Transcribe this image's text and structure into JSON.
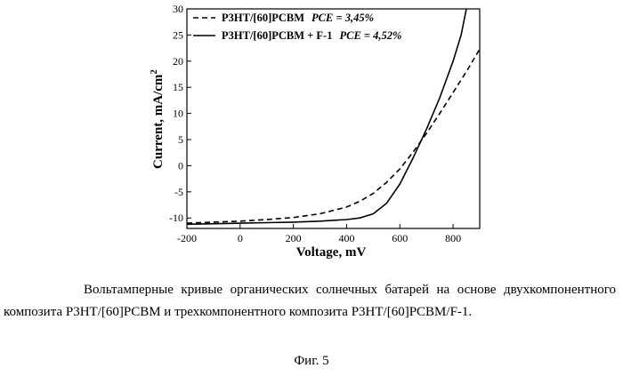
{
  "chart_data": {
    "type": "line",
    "xlabel": "Voltage, mV",
    "ylabel": "Current, mA/cm",
    "ylabel_sup": "2",
    "xlim": [
      -200,
      900
    ],
    "ylim": [
      -12,
      30
    ],
    "xticks": [
      -200,
      0,
      200,
      400,
      600,
      800
    ],
    "yticks": [
      -10,
      -5,
      0,
      5,
      10,
      15,
      20,
      25,
      30
    ],
    "grid": false,
    "legend_position": "top-left",
    "series": [
      {
        "name": "P3HT/[60]PCBM",
        "pce_label": "PCE = 3,45%",
        "style": "dashed",
        "x": [
          -200,
          -100,
          0,
          100,
          200,
          300,
          400,
          450,
          500,
          550,
          600,
          650,
          700,
          750,
          800,
          850,
          900
        ],
        "y": [
          -11.0,
          -10.8,
          -10.6,
          -10.3,
          -9.9,
          -9.2,
          -7.9,
          -6.8,
          -5.3,
          -3.2,
          -0.6,
          2.6,
          6.2,
          10.0,
          14.0,
          18.0,
          22.3
        ]
      },
      {
        "name": "P3HT/[60]PCBM + F-1",
        "pce_label": "PCE = 4,52%",
        "style": "solid",
        "x": [
          -200,
          -100,
          0,
          100,
          200,
          300,
          400,
          450,
          500,
          550,
          600,
          650,
          700,
          750,
          800,
          830,
          850
        ],
        "y": [
          -11.2,
          -11.1,
          -11.0,
          -10.9,
          -10.8,
          -10.6,
          -10.3,
          -10.0,
          -9.2,
          -7.2,
          -3.5,
          1.5,
          7.0,
          13.0,
          20.0,
          25.0,
          30.0
        ]
      }
    ]
  },
  "caption": "Вольтамперные кривые органических солнечных батарей на основе двухкомпонентного композита P3HT/[60]PCBM и трехкомпонентного композита P3HT/[60]PCBM/F-1.",
  "figure_label": "Фиг. 5"
}
